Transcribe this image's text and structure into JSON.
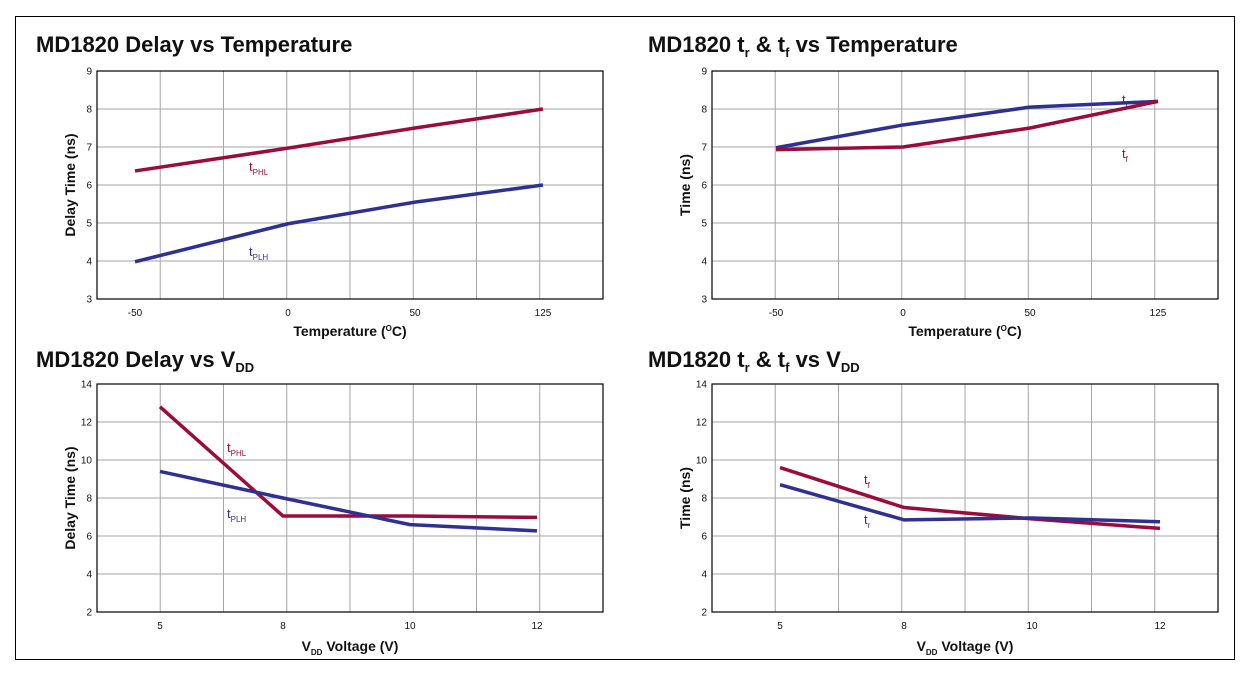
{
  "colors": {
    "red": "#9b0b3c",
    "blue": "#2e3192",
    "grid": "#a6a6a6"
  },
  "chart_data": [
    {
      "type": "line",
      "title": {
        "main": "MD1820 Delay vs Temperature",
        "sub": ""
      },
      "xlabel": {
        "main": "Temperature (",
        "sup": "O",
        "rest": "C)"
      },
      "ylabel": "Delay Time (ns)",
      "ylim": [
        3,
        9
      ],
      "yticks": [
        3,
        4,
        5,
        6,
        7,
        8,
        9
      ],
      "xticks": [
        "-50",
        "0",
        "50",
        "125"
      ],
      "x": [
        "-50",
        "0",
        "50",
        "125"
      ],
      "series": [
        {
          "name": "t",
          "sub": "PHL",
          "color": "#9b0b3c",
          "values": [
            6.37,
            6.97,
            7.5,
            8.0
          ]
        },
        {
          "name": "t",
          "sub": "PLH",
          "color": "#2e3192",
          "values": [
            3.98,
            4.98,
            5.55,
            6.0
          ]
        }
      ]
    },
    {
      "type": "line",
      "title": {
        "main": "MD1820 t",
        "parts": [
          {
            "t": "r",
            "kind": "sub"
          },
          {
            "t": " & t",
            "kind": "text"
          },
          {
            "t": "f",
            "kind": "sub"
          },
          {
            "t": " vs Temperature",
            "kind": "text"
          }
        ]
      },
      "xlabel": {
        "main": "Temperature (",
        "sup": "O",
        "rest": "C)"
      },
      "ylabel": "Time (ns)",
      "ylim": [
        3,
        9
      ],
      "yticks": [
        3,
        4,
        5,
        6,
        7,
        8,
        9
      ],
      "xticks": [
        "-50",
        "0",
        "50",
        "125"
      ],
      "x": [
        "-50",
        "0",
        "50",
        "125"
      ],
      "series": [
        {
          "name": "t",
          "sub": "r",
          "color": "#2e3192",
          "values": [
            6.98,
            7.58,
            8.05,
            8.2
          ]
        },
        {
          "name": "t",
          "sub": "f",
          "color": "#9b0b3c",
          "values": [
            6.93,
            7.0,
            7.5,
            8.2
          ]
        }
      ]
    },
    {
      "type": "line",
      "title": {
        "main": "MD1820 Delay vs V",
        "parts": [
          {
            "t": "DD",
            "kind": "sub"
          }
        ]
      },
      "xlabel": {
        "pre": "V",
        "sub": "DD",
        "main": " Voltage (V)"
      },
      "ylabel": "Delay Time (ns)",
      "ylim": [
        2,
        14
      ],
      "yticks": [
        2,
        4,
        6,
        8,
        10,
        12,
        14
      ],
      "xticks": [
        "5",
        "8",
        "10",
        "12"
      ],
      "x": [
        "5",
        "8",
        "10",
        "12"
      ],
      "series": [
        {
          "name": "t",
          "sub": "PHL",
          "color": "#9b0b3c",
          "values": [
            12.8,
            7.05,
            7.05,
            6.98
          ]
        },
        {
          "name": "t",
          "sub": "PLH",
          "color": "#2e3192",
          "values": [
            9.4,
            8.0,
            6.6,
            6.27
          ]
        }
      ]
    },
    {
      "type": "line",
      "title": {
        "main": "MD1820 t",
        "parts": [
          {
            "t": "r",
            "kind": "sub"
          },
          {
            "t": " & t",
            "kind": "text"
          },
          {
            "t": "f",
            "kind": "sub"
          },
          {
            "t": " vs V",
            "kind": "text"
          },
          {
            "t": "DD",
            "kind": "sub"
          }
        ]
      },
      "xlabel": {
        "pre": "V",
        "sub": "DD",
        "main": " Voltage (V)"
      },
      "ylabel": "Time (ns)",
      "ylim": [
        2,
        14
      ],
      "yticks": [
        2,
        4,
        6,
        8,
        10,
        12,
        14
      ],
      "xticks": [
        "5",
        "8",
        "10",
        "12"
      ],
      "x": [
        "5",
        "8",
        "10",
        "12"
      ],
      "series": [
        {
          "name": "t",
          "sub": "f",
          "color": "#9b0b3c",
          "values": [
            9.6,
            7.5,
            6.9,
            6.4
          ]
        },
        {
          "name": "t",
          "sub": "r",
          "color": "#2e3192",
          "values": [
            8.7,
            6.85,
            6.95,
            6.75
          ]
        }
      ]
    }
  ]
}
